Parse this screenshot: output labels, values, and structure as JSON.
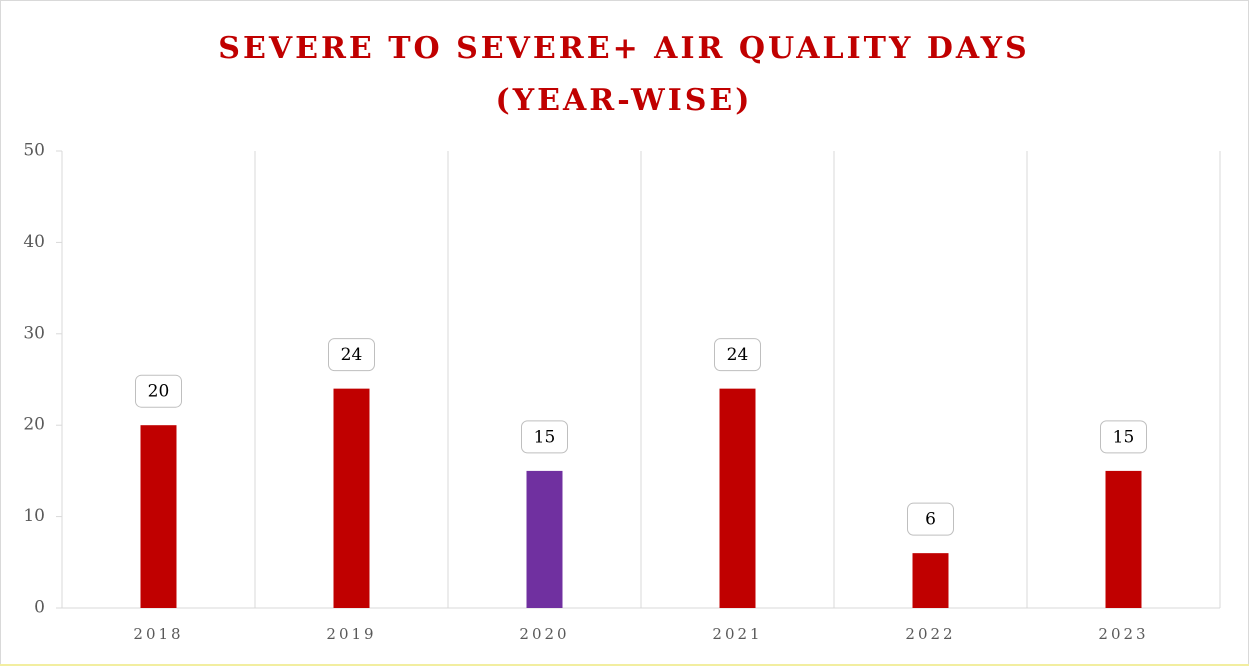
{
  "chart_data": {
    "type": "bar",
    "title": [
      "SEVERE TO SEVERE+ AIR QUALITY DAYS",
      "(YEAR-WISE)"
    ],
    "categories": [
      "2018",
      "2019",
      "2020",
      "2021",
      "2022",
      "2023"
    ],
    "values": [
      20,
      24,
      15,
      24,
      6,
      15
    ],
    "colors": [
      "#c00000",
      "#c00000",
      "#7030a0",
      "#c00000",
      "#c00000",
      "#c00000"
    ],
    "ylim": [
      0,
      50
    ],
    "yticks": [
      0,
      10,
      20,
      30,
      40,
      50
    ],
    "grid": true
  }
}
